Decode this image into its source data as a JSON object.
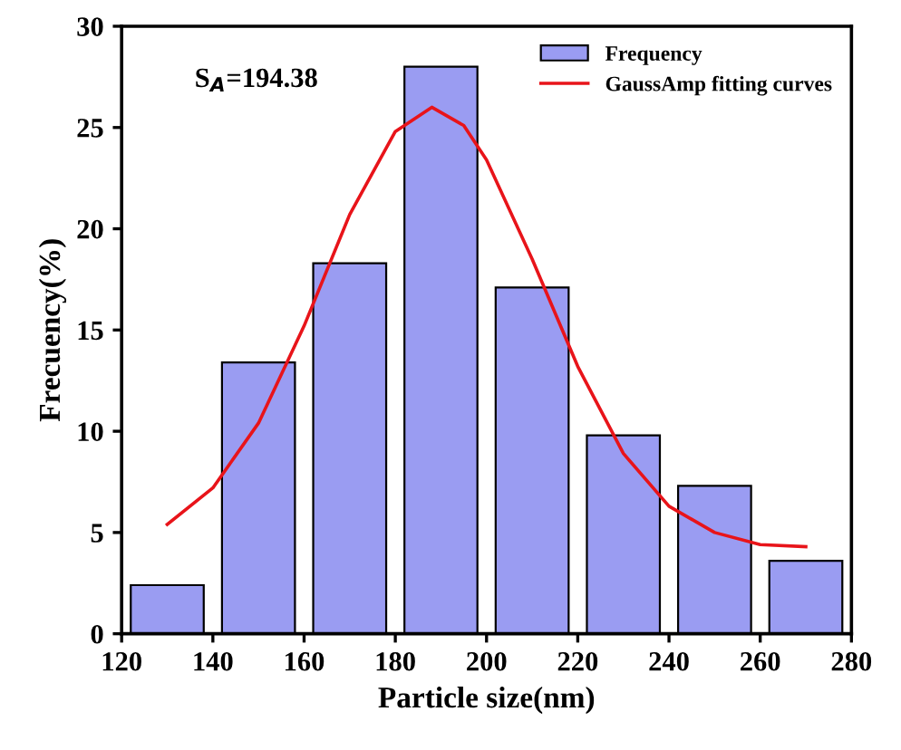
{
  "chart_data": {
    "type": "bar",
    "xlabel": "Particle size(nm)",
    "ylabel": "Frecuency(%)",
    "x": [
      130,
      150,
      170,
      190,
      210,
      230,
      250,
      270
    ],
    "series": [
      {
        "name": "Frequency",
        "color": "#9a9cf2",
        "values": [
          2.4,
          13.4,
          18.3,
          28,
          17.1,
          9.8,
          7.3,
          3.6
        ]
      },
      {
        "name": "GaussAmp fitting curves",
        "type": "line",
        "color": "#e8141a",
        "x": [
          130,
          140,
          150,
          160,
          170,
          180,
          188,
          195,
          200,
          210,
          220,
          230,
          240,
          250,
          260,
          270
        ],
        "values": [
          5.4,
          7.2,
          10.4,
          15.2,
          20.7,
          24.8,
          26.0,
          25.1,
          23.4,
          18.5,
          13.2,
          8.9,
          6.3,
          5.0,
          4.4,
          4.3
        ]
      }
    ],
    "annotations": [
      "S$_{A}$=194.38"
    ],
    "xlim": [
      120,
      280
    ],
    "ylim": [
      0,
      30
    ],
    "xticks": [
      120,
      140,
      160,
      180,
      200,
      220,
      240,
      260,
      280
    ],
    "yticks": [
      0,
      5,
      10,
      15,
      20,
      25,
      30
    ],
    "grid": false,
    "legend": "top right"
  }
}
